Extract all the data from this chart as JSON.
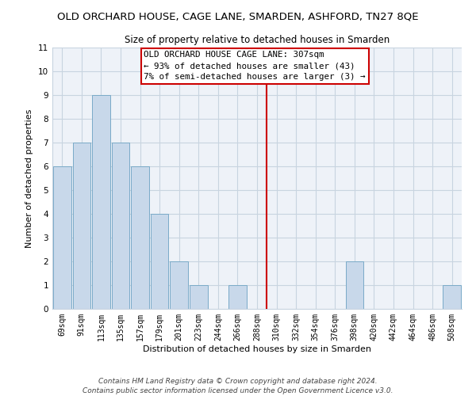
{
  "title": "OLD ORCHARD HOUSE, CAGE LANE, SMARDEN, ASHFORD, TN27 8QE",
  "subtitle": "Size of property relative to detached houses in Smarden",
  "xlabel": "Distribution of detached houses by size in Smarden",
  "ylabel": "Number of detached properties",
  "bar_labels": [
    "69sqm",
    "91sqm",
    "113sqm",
    "135sqm",
    "157sqm",
    "179sqm",
    "201sqm",
    "223sqm",
    "244sqm",
    "266sqm",
    "288sqm",
    "310sqm",
    "332sqm",
    "354sqm",
    "376sqm",
    "398sqm",
    "420sqm",
    "442sqm",
    "464sqm",
    "486sqm",
    "508sqm"
  ],
  "bar_values": [
    6,
    7,
    9,
    7,
    6,
    4,
    2,
    1,
    0,
    1,
    0,
    0,
    0,
    0,
    0,
    2,
    0,
    0,
    0,
    0,
    1
  ],
  "bar_color": "#c8d8ea",
  "bar_edge_color": "#7aaac8",
  "grid_color": "#c8d4e0",
  "reference_line_value": 10.5,
  "reference_line_color": "#cc0000",
  "annotation_text": "OLD ORCHARD HOUSE CAGE LANE: 307sqm\n← 93% of detached houses are smaller (43)\n7% of semi-detached houses are larger (3) →",
  "annotation_box_color": "#ffffff",
  "annotation_border_color": "#cc0000",
  "ylim": [
    0,
    11
  ],
  "yticks": [
    0,
    1,
    2,
    3,
    4,
    5,
    6,
    7,
    8,
    9,
    10,
    11
  ],
  "footer_line1": "Contains HM Land Registry data © Crown copyright and database right 2024.",
  "footer_line2": "Contains public sector information licensed under the Open Government Licence v3.0.",
  "title_fontsize": 9.5,
  "subtitle_fontsize": 8.5,
  "tick_fontsize": 7,
  "ylabel_fontsize": 8,
  "xlabel_fontsize": 8,
  "annotation_fontsize": 7.8,
  "footer_fontsize": 6.5
}
